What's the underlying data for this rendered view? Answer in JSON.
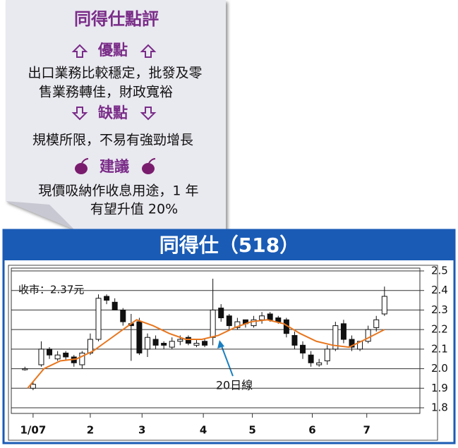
{
  "card": {
    "title": "同得仕點評",
    "pros_heading": "優點",
    "pros_lines": [
      "出口業務比較穩定，批發及零",
      "售業務轉佳，財政寬裕"
    ],
    "cons_heading": "缺點",
    "cons_lines": [
      "規模所限，不易有強勁增長"
    ],
    "advice_heading": "建議",
    "advice_lines": [
      "現價吸納作收息用途，1 年",
      "有望升值 20%"
    ]
  },
  "chart_data": {
    "type": "candlestick",
    "title": "同得仕（518）",
    "annotations": [
      "收市：2.37元",
      "20日線"
    ],
    "x": [
      5,
      8,
      11,
      14,
      17,
      20,
      23,
      26,
      29,
      32,
      35,
      38,
      41,
      44,
      47,
      50,
      53,
      56,
      59,
      62,
      65,
      68,
      71,
      74,
      77,
      80,
      83,
      86,
      89,
      92,
      95,
      98,
      101,
      104,
      107,
      110,
      113,
      116,
      119,
      122,
      125,
      128,
      131,
      134,
      137
    ],
    "open": [
      2.0,
      1.9,
      2.02,
      2.1,
      2.05,
      2.08,
      2.06,
      2.02,
      2.08,
      2.15,
      2.37,
      2.34,
      2.3,
      2.23,
      2.24,
      2.1,
      2.15,
      2.13,
      2.11,
      2.14,
      2.16,
      2.12,
      2.14,
      2.16,
      2.31,
      2.27,
      2.21,
      2.25,
      2.22,
      2.25,
      2.28,
      2.26,
      2.25,
      2.17,
      2.12,
      2.07,
      2.02,
      2.04,
      2.1,
      2.23,
      2.15,
      2.1,
      2.14,
      2.21,
      2.28
    ],
    "high": [
      2.01,
      1.93,
      2.14,
      2.11,
      2.09,
      2.09,
      2.07,
      2.09,
      2.18,
      2.38,
      2.38,
      2.36,
      2.31,
      2.28,
      2.26,
      2.18,
      2.17,
      2.14,
      2.16,
      2.17,
      2.17,
      2.15,
      2.15,
      2.46,
      2.33,
      2.28,
      2.26,
      2.25,
      2.27,
      2.29,
      2.29,
      2.27,
      2.26,
      2.19,
      2.14,
      2.09,
      2.05,
      2.12,
      2.24,
      2.25,
      2.17,
      2.14,
      2.22,
      2.27,
      2.42
    ],
    "low": [
      1.99,
      1.89,
      2.01,
      2.05,
      2.04,
      2.04,
      2.01,
      2.0,
      2.07,
      2.14,
      2.33,
      2.3,
      2.22,
      2.04,
      2.07,
      2.06,
      2.1,
      2.1,
      2.1,
      2.12,
      2.12,
      2.11,
      2.11,
      2.12,
      2.24,
      2.2,
      2.2,
      2.21,
      2.21,
      2.23,
      2.24,
      2.23,
      2.16,
      2.1,
      2.05,
      2.01,
      2.01,
      2.02,
      2.09,
      2.13,
      2.09,
      2.09,
      2.13,
      2.19,
      2.27
    ],
    "close": [
      2.0,
      1.92,
      2.1,
      2.07,
      2.07,
      2.06,
      2.03,
      2.08,
      2.15,
      2.36,
      2.35,
      2.3,
      2.24,
      2.22,
      2.08,
      2.16,
      2.12,
      2.12,
      2.14,
      2.15,
      2.13,
      2.13,
      2.12,
      2.3,
      2.26,
      2.22,
      2.24,
      2.23,
      2.25,
      2.27,
      2.25,
      2.24,
      2.18,
      2.12,
      2.08,
      2.03,
      2.03,
      2.1,
      2.22,
      2.15,
      2.11,
      2.14,
      2.2,
      2.25,
      2.37
    ],
    "ma": {
      "name": "20日線",
      "color": "#e8761e",
      "x": [
        6,
        12,
        18,
        24,
        30,
        36,
        42,
        46,
        52,
        58,
        64,
        70,
        76,
        82,
        88,
        94,
        100,
        106,
        112,
        118,
        124,
        130,
        137
      ],
      "values": [
        1.9,
        2.0,
        2.04,
        2.05,
        2.09,
        2.15,
        2.21,
        2.25,
        2.22,
        2.18,
        2.15,
        2.15,
        2.17,
        2.21,
        2.24,
        2.25,
        2.23,
        2.18,
        2.14,
        2.12,
        2.11,
        2.15,
        2.2
      ]
    },
    "xlim": [
      0,
      150
    ],
    "xticks": [
      {
        "value": 8,
        "label": "1/07"
      },
      {
        "value": 29,
        "label": "2"
      },
      {
        "value": 48,
        "label": "3"
      },
      {
        "value": 70.5,
        "label": "4"
      },
      {
        "value": 88.5,
        "label": "5"
      },
      {
        "value": 110.5,
        "label": "6"
      },
      {
        "value": 130.5,
        "label": "7"
      }
    ],
    "ylim": [
      1.8,
      2.5
    ],
    "yticks": [
      {
        "value": 1.8,
        "label": "1.8"
      },
      {
        "value": 1.9,
        "label": "1.9"
      },
      {
        "value": 2.0,
        "label": "2.0"
      },
      {
        "value": 2.1,
        "label": "2.1"
      },
      {
        "value": 2.2,
        "label": "2.2"
      },
      {
        "value": 2.3,
        "label": "2.3"
      },
      {
        "value": 2.4,
        "label": "2.4"
      },
      {
        "value": 2.5,
        "label": "2.5"
      }
    ],
    "grid": true
  }
}
